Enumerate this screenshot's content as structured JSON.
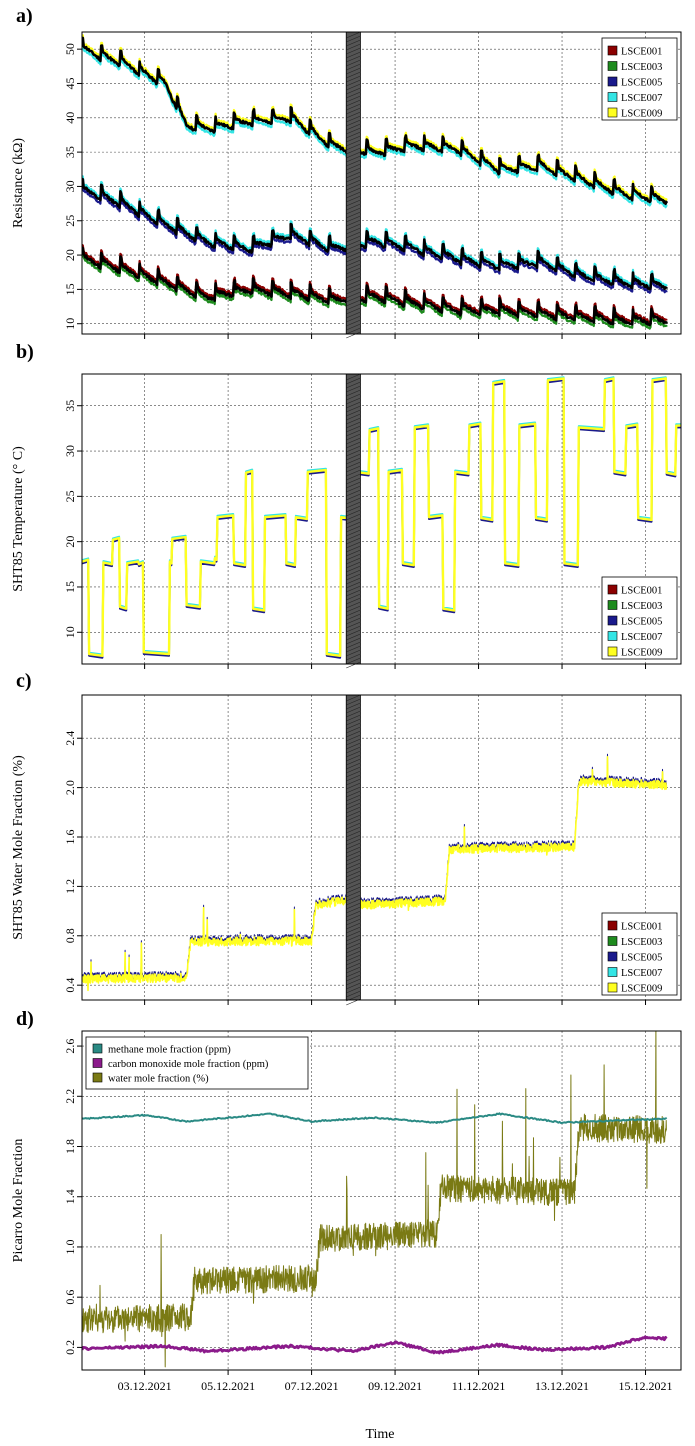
{
  "figure": {
    "xlabel": "Time"
  },
  "colors": {
    "LSCE001": "#8b0000",
    "LSCE003": "#1e8b1e",
    "LSCE005": "#1a1a8c",
    "LSCE007": "#33e5e5",
    "LSCE009": "#ffff20",
    "black": "#000000",
    "methane": "#2a8a84",
    "co": "#8b1a8b",
    "water": "#7a7a14",
    "shade": "#555555"
  },
  "chart_data": [
    {
      "panel_label": "a)",
      "type": "line",
      "ylabel": "Resistance (kΩ)",
      "x_range": [
        "2021-12-01T12:00",
        "2021-12-15T20:00"
      ],
      "x_ticks": [
        "03.12.2021",
        "05.12.2021",
        "07.12.2021",
        "09.12.2021",
        "11.12.2021",
        "13.12.2021",
        "15.12.2021"
      ],
      "ylim": [
        8.5,
        52.5
      ],
      "y_ticks": [
        10,
        15,
        20,
        25,
        30,
        35,
        40,
        45,
        50
      ],
      "grid": true,
      "legend_position": "top-right",
      "shaded_period": [
        "2021-12-07T20:00",
        "2021-12-08T04:00"
      ],
      "legend": [
        "LSCE001",
        "LSCE003",
        "LSCE005",
        "LSCE007",
        "LSCE009"
      ],
      "series": [
        {
          "name": "LSCE009 (upper group)",
          "values": [
            [
              0,
              50
            ],
            [
              1,
              48
            ],
            [
              2,
              45
            ],
            [
              2.5,
              39
            ],
            [
              3,
              38.5
            ],
            [
              4,
              39.5
            ],
            [
              5,
              40
            ],
            [
              6,
              36
            ],
            [
              7,
              35
            ],
            [
              8,
              36
            ],
            [
              9,
              35.5
            ],
            [
              10,
              32.5
            ],
            [
              11,
              33
            ],
            [
              12,
              31
            ],
            [
              13,
              29
            ],
            [
              14,
              28
            ]
          ]
        },
        {
          "name": "LSCE005 (middle group)",
          "values": [
            [
              0,
              29.5
            ],
            [
              1,
              27.5
            ],
            [
              2,
              24.5
            ],
            [
              3,
              22
            ],
            [
              4,
              21
            ],
            [
              5,
              23
            ],
            [
              6,
              21
            ],
            [
              7,
              22
            ],
            [
              8,
              21
            ],
            [
              9,
              19.5
            ],
            [
              10,
              18.5
            ],
            [
              11,
              19
            ],
            [
              12,
              17
            ],
            [
              13,
              16
            ],
            [
              14,
              15.5
            ]
          ]
        },
        {
          "name": "LSCE001 (lower group)",
          "values": [
            [
              0,
              19.5
            ],
            [
              1,
              18
            ],
            [
              2,
              16
            ],
            [
              3,
              14
            ],
            [
              4,
              15
            ],
            [
              5,
              14.5
            ],
            [
              6,
              13.5
            ],
            [
              7,
              14
            ],
            [
              8,
              13
            ],
            [
              9,
              12
            ],
            [
              10,
              12
            ],
            [
              11,
              11.5
            ],
            [
              12,
              11
            ],
            [
              13,
              10.5
            ],
            [
              14,
              10.5
            ]
          ]
        }
      ]
    },
    {
      "panel_label": "b)",
      "type": "line",
      "ylabel": "SHT85 Temperature (° C)",
      "ylim": [
        6.5,
        38.5
      ],
      "y_ticks": [
        10,
        15,
        20,
        25,
        30,
        35
      ],
      "grid": true,
      "legend_position": "bottom-right",
      "legend": [
        "LSCE001",
        "LSCE003",
        "LSCE005",
        "LSCE007",
        "LSCE009"
      ],
      "series": [
        {
          "name": "temperature",
          "values": [
            [
              0,
              17.8
            ],
            [
              0.15,
              7.6
            ],
            [
              0.45,
              17.7
            ],
            [
              0.65,
              20.2
            ],
            [
              0.8,
              12.8
            ],
            [
              0.95,
              17.6
            ],
            [
              1.2,
              17.5
            ],
            [
              1.3,
              7.8
            ],
            [
              1.85,
              17.8
            ],
            [
              1.9,
              20.3
            ],
            [
              2.2,
              13
            ],
            [
              2.5,
              17.8
            ],
            [
              2.8,
              18.2
            ],
            [
              2.85,
              22.7
            ],
            [
              3.2,
              17.6
            ],
            [
              3.45,
              27.6
            ],
            [
              3.6,
              12.6
            ],
            [
              3.85,
              22.7
            ],
            [
              4.3,
              17.6
            ],
            [
              4.5,
              22.7
            ],
            [
              4.75,
              27.7
            ],
            [
              5.15,
              7.6
            ],
            [
              5.45,
              22.7
            ],
            [
              5.75,
              27.7
            ],
            [
              6.05,
              32.3
            ],
            [
              6.25,
              12.8
            ],
            [
              6.45,
              27.7
            ],
            [
              6.75,
              17.6
            ],
            [
              7.0,
              32.6
            ],
            [
              7.3,
              22.7
            ],
            [
              7.6,
              12.6
            ],
            [
              7.85,
              27.7
            ],
            [
              8.15,
              32.8
            ],
            [
              8.4,
              22.6
            ],
            [
              8.65,
              37.5
            ],
            [
              8.9,
              17.6
            ],
            [
              9.2,
              32.8
            ],
            [
              9.55,
              22.6
            ],
            [
              9.8,
              37.8
            ],
            [
              10.15,
              17.6
            ],
            [
              10.45,
              32.6
            ],
            [
              11.0,
              37.8
            ],
            [
              11.2,
              27.7
            ],
            [
              11.45,
              32.7
            ],
            [
              11.7,
              22.6
            ],
            [
              12.0,
              37.8
            ],
            [
              12.3,
              27.6
            ],
            [
              12.5,
              32.8
            ]
          ]
        }
      ]
    },
    {
      "panel_label": "c)",
      "type": "line",
      "ylabel": "SHT85 Water Mole Fraction (%)",
      "ylim": [
        0.28,
        2.75
      ],
      "y_ticks": [
        0.4,
        0.8,
        1.2,
        1.6,
        2.0,
        2.4
      ],
      "grid": true,
      "legend_position": "bottom-right",
      "legend": [
        "LSCE001",
        "LSCE003",
        "LSCE005",
        "LSCE007",
        "LSCE009"
      ],
      "series": [
        {
          "name": "water",
          "values": [
            [
              0,
              0.45
            ],
            [
              2.5,
              0.46
            ],
            [
              2.6,
              0.75
            ],
            [
              5.5,
              0.76
            ],
            [
              5.6,
              1.05
            ],
            [
              6.6,
              1.1
            ],
            [
              6.7,
              1.05
            ],
            [
              8.7,
              1.08
            ],
            [
              8.8,
              1.5
            ],
            [
              11.8,
              1.52
            ],
            [
              11.9,
              2.05
            ],
            [
              14,
              2.02
            ]
          ]
        }
      ]
    },
    {
      "panel_label": "d)",
      "type": "line",
      "ylabel": "Picarro Mole Fraction",
      "ylim": [
        0.02,
        2.72
      ],
      "y_ticks": [
        0.2,
        0.6,
        1.0,
        1.4,
        1.8,
        2.2,
        2.6
      ],
      "grid": true,
      "legend_position": "top-left",
      "legend": [
        "methane mole fraction (ppm)",
        "carbon monoxide mole fraction (ppm)",
        "water mole fraction (%)"
      ],
      "series": [
        {
          "name": "methane mole fraction (ppm)",
          "values": [
            [
              0,
              2.02
            ],
            [
              1.5,
              2.05
            ],
            [
              2.5,
              2.0
            ],
            [
              4.5,
              2.06
            ],
            [
              5.5,
              2.0
            ],
            [
              7,
              2.03
            ],
            [
              8.5,
              1.99
            ],
            [
              10,
              2.06
            ],
            [
              11.5,
              1.99
            ],
            [
              13,
              2.01
            ],
            [
              14,
              2.02
            ]
          ]
        },
        {
          "name": "carbon monoxide mole fraction (ppm)",
          "values": [
            [
              0,
              0.19
            ],
            [
              2,
              0.21
            ],
            [
              3,
              0.17
            ],
            [
              5,
              0.21
            ],
            [
              6.5,
              0.17
            ],
            [
              7.5,
              0.24
            ],
            [
              8.5,
              0.16
            ],
            [
              10,
              0.22
            ],
            [
              11,
              0.18
            ],
            [
              12.5,
              0.2
            ],
            [
              13.5,
              0.28
            ],
            [
              14,
              0.27
            ]
          ]
        },
        {
          "name": "water mole fraction (%)",
          "values": [
            [
              0,
              0.42
            ],
            [
              2.6,
              0.44
            ],
            [
              2.7,
              0.73
            ],
            [
              5.6,
              0.75
            ],
            [
              5.7,
              1.07
            ],
            [
              8.5,
              1.1
            ],
            [
              8.6,
              1.47
            ],
            [
              11.8,
              1.43
            ],
            [
              11.9,
              1.95
            ],
            [
              14,
              1.93
            ]
          ]
        }
      ]
    }
  ]
}
